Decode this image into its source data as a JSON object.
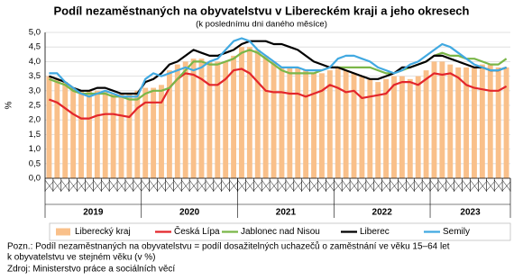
{
  "chart_data": {
    "type": "combo",
    "title": "Podíl nezaměstnaných na obyvatelstvu v Libereckém kraji a jeho okresech",
    "subtitle": "(k poslednímu dni daného měsíce)",
    "y_label": "%",
    "categories": [
      null,
      null,
      null,
      null,
      null,
      null,
      null,
      null,
      null,
      null,
      null,
      null,
      null,
      null,
      null,
      null,
      null,
      null,
      null,
      null,
      null,
      null,
      null,
      null,
      null,
      null,
      null,
      null,
      null,
      null,
      null,
      null,
      null,
      null,
      null,
      null,
      null,
      null,
      null,
      null,
      null,
      null,
      null,
      null,
      null,
      null,
      null,
      null,
      null,
      null,
      null,
      null,
      null,
      null,
      null,
      null,
      null,
      null
    ],
    "year_labels": [
      "2019",
      "2020",
      "2021",
      "2022",
      "2023"
    ],
    "ylim": [
      0,
      5
    ],
    "yticks": [
      {
        "value": 0,
        "label": "0,0"
      },
      {
        "value": 0.5,
        "label": "0,5"
      },
      {
        "value": 1,
        "label": "1,0"
      },
      {
        "value": 1.5,
        "label": "1,5"
      },
      {
        "value": 2,
        "label": "2,0"
      },
      {
        "value": 2.5,
        "label": "2,5"
      },
      {
        "value": 3,
        "label": "3,0"
      },
      {
        "value": 3.5,
        "label": "3,5"
      },
      {
        "value": 4,
        "label": "4,0"
      },
      {
        "value": 4.5,
        "label": "4,5"
      },
      {
        "value": 5,
        "label": "5,0"
      }
    ],
    "grid": true,
    "legend": "bottom",
    "series": [
      {
        "name": "Liberecký kraj",
        "type": "bar",
        "color": "#f9c08a",
        "values": [
          3.5,
          3.4,
          3.3,
          3.1,
          3.0,
          3.0,
          3.0,
          3.0,
          2.9,
          2.9,
          2.9,
          3.0,
          3.1,
          3.1,
          3.2,
          3.7,
          3.9,
          4.0,
          4.1,
          4.1,
          4.0,
          4.0,
          4.0,
          4.2,
          4.5,
          4.5,
          4.4,
          4.2,
          4.0,
          3.8,
          3.8,
          3.8,
          3.7,
          3.6,
          3.6,
          3.7,
          3.8,
          3.7,
          3.6,
          3.5,
          3.4,
          3.3,
          3.4,
          3.5,
          3.5,
          3.4,
          3.5,
          3.7,
          4.0,
          4.0,
          3.9,
          3.8,
          3.8,
          3.8,
          3.9,
          3.9,
          3.8,
          3.8
        ]
      },
      {
        "name": "Česká Lípa",
        "type": "line",
        "color": "#e3262b",
        "values": [
          2.7,
          2.6,
          2.4,
          2.2,
          2.05,
          2.05,
          2.15,
          2.2,
          2.2,
          2.15,
          2.1,
          2.4,
          2.6,
          2.6,
          2.6,
          3.1,
          3.4,
          3.6,
          3.55,
          3.4,
          3.2,
          3.2,
          3.4,
          3.7,
          3.75,
          3.6,
          3.3,
          3.0,
          2.95,
          2.95,
          2.9,
          2.9,
          2.8,
          2.9,
          3.0,
          3.2,
          3.1,
          2.95,
          3.0,
          2.75,
          2.8,
          2.85,
          2.9,
          3.2,
          3.3,
          3.3,
          3.2,
          3.4,
          3.6,
          3.55,
          3.6,
          3.45,
          3.2,
          3.1,
          3.05,
          3.0,
          3.0,
          3.15
        ]
      },
      {
        "name": "Jablonec nad Nisou",
        "type": "line",
        "color": "#7ab648",
        "values": [
          3.4,
          3.3,
          3.2,
          3.0,
          2.9,
          2.9,
          2.9,
          2.9,
          2.8,
          2.8,
          2.7,
          2.7,
          2.9,
          3.0,
          3.0,
          3.1,
          3.4,
          3.7,
          4.0,
          4.0,
          3.9,
          3.9,
          4.0,
          4.1,
          4.3,
          4.4,
          4.3,
          4.1,
          3.9,
          3.7,
          3.6,
          3.6,
          3.6,
          3.6,
          3.7,
          3.8,
          3.8,
          3.8,
          3.8,
          3.8,
          3.8,
          3.7,
          3.6,
          3.6,
          3.7,
          3.8,
          3.9,
          4.0,
          4.2,
          4.3,
          4.2,
          4.2,
          4.1,
          4.1,
          4.0,
          3.9,
          3.9,
          4.1
        ]
      },
      {
        "name": "Liberec",
        "type": "line",
        "color": "#000000",
        "values": [
          3.5,
          3.4,
          3.3,
          3.1,
          3.0,
          3.0,
          3.1,
          3.1,
          3.0,
          2.9,
          2.9,
          2.9,
          3.3,
          3.4,
          3.6,
          3.9,
          4.0,
          4.2,
          4.4,
          4.3,
          4.2,
          4.2,
          4.3,
          4.4,
          4.6,
          4.7,
          4.7,
          4.7,
          4.6,
          4.6,
          4.5,
          4.4,
          4.2,
          4.0,
          3.9,
          3.8,
          3.8,
          3.7,
          3.6,
          3.5,
          3.4,
          3.4,
          3.5,
          3.6,
          3.8,
          3.8,
          3.9,
          4.0,
          4.2,
          4.2,
          4.1,
          4.0,
          3.9,
          3.8,
          3.8,
          3.7,
          3.7,
          3.8
        ]
      },
      {
        "name": "Semily",
        "type": "line",
        "color": "#41a9e1",
        "values": [
          3.6,
          3.6,
          3.3,
          3.1,
          2.9,
          2.8,
          2.9,
          3.0,
          2.9,
          2.8,
          2.8,
          2.8,
          3.4,
          3.6,
          3.5,
          3.6,
          3.7,
          3.8,
          3.7,
          3.8,
          4.0,
          4.1,
          4.4,
          4.7,
          4.8,
          4.7,
          4.4,
          4.2,
          4.0,
          3.8,
          3.8,
          3.8,
          3.7,
          3.7,
          3.7,
          3.8,
          4.1,
          4.2,
          4.2,
          4.1,
          4.0,
          3.8,
          3.7,
          3.6,
          3.7,
          3.9,
          4.0,
          4.2,
          4.4,
          4.6,
          4.5,
          4.3,
          4.1,
          3.9,
          3.8,
          3.7,
          3.7,
          3.8
        ]
      }
    ],
    "note": [
      "Pozn.: Podíl nezaměstnaných na obyvatelstvu = podíl dosažitelných uchazečů o zaměstnání ve věku 15–64 let",
      "k obyvatelstvu ve stejném věku (v %)"
    ],
    "source": "Zdroj: Ministerstvo práce a sociálních věcí"
  }
}
